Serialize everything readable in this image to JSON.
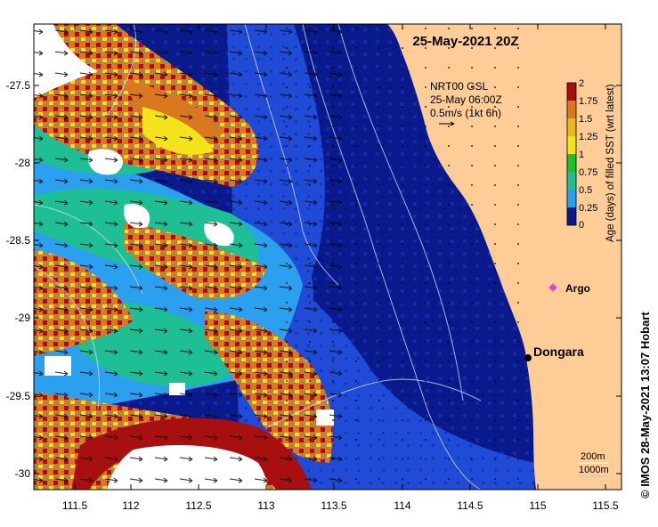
{
  "map": {
    "title": "25-May-2021 20Z",
    "credit": "©  IMOS 28-May-2021 13:07 Hobart",
    "x_ticks": [
      "111.5",
      "112",
      "112.5",
      "113",
      "113.5",
      "114",
      "114.5",
      "115",
      "115.5"
    ],
    "y_ticks": [
      "-27.5",
      "-28",
      "-28.5",
      "-29",
      "-29.5",
      "-30"
    ],
    "current_legend": {
      "line1": "NRT00 GSL",
      "line2": "25-May 06:00Z",
      "line3": "0.5m/s (1kt 6h)"
    },
    "isobath_legend": {
      "depth1": "200m",
      "depth2": "1000m"
    },
    "places": [
      {
        "label": "Dongara"
      },
      {
        "label": "Argo"
      }
    ],
    "colorbar": {
      "label": "Age (days) of filled SST (wrt latest)",
      "ticks": [
        "2",
        "1.75",
        "1.5",
        "1.25",
        "1",
        "0.75",
        "0.5",
        "0.25",
        "0"
      ]
    },
    "colors": {
      "land": "#fdcc97",
      "deep_blue": "#0a1a8c",
      "blue": "#1f4bd6",
      "light_blue": "#2aa0ee",
      "teal": "#1fbf96",
      "yellow": "#f4e21a",
      "orange": "#d9781f",
      "red": "#a80f0f",
      "cloud": "#ffffff"
    }
  }
}
